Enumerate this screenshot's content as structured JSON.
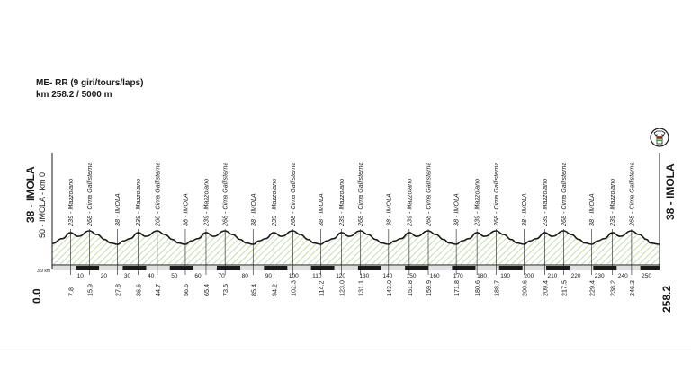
{
  "header": {
    "line1": "ME- RR  (9 giri/tours/laps)",
    "line2": "km 258.2 / 5000 m"
  },
  "left_label": "38 - IMOLA",
  "left_sub": "50 - IMOLA - km 0",
  "right_label": "38 - IMOLA",
  "start_km": "0.0",
  "end_km": "258.2",
  "scale_corner": "3.9 km",
  "colors": {
    "profile_line": "#1a1a1a",
    "hatch": "#b8d59a",
    "bar_dark": "#1a1a1a",
    "bar_light": "#e0e0e0"
  },
  "chart_data": {
    "type": "area",
    "title": "ME- RR  (9 giri/tours/laps)",
    "subtitle": "km 258.2 / 5000 m",
    "xlim": [
      0,
      258.2
    ],
    "x_ticks": [
      10,
      20,
      30,
      40,
      50,
      60,
      70,
      80,
      90,
      100,
      110,
      120,
      130,
      140,
      150,
      160,
      170,
      180,
      190,
      200,
      210,
      220,
      230,
      240,
      250
    ],
    "waypoints": [
      {
        "km": 7.8,
        "km_label": "7.8",
        "alt": 239,
        "name": "239 - Mazzolano"
      },
      {
        "km": 15.9,
        "km_label": "15.9",
        "alt": 268,
        "name": "268 - Cima Gallisterna"
      },
      {
        "km": 27.8,
        "km_label": "27.8",
        "alt": 38,
        "name": "38 - IMOLA"
      },
      {
        "km": 36.6,
        "km_label": "36.6",
        "alt": 239,
        "name": "239 - Mazzolano"
      },
      {
        "km": 44.7,
        "km_label": "44.7",
        "alt": 268,
        "name": "268 - Cima Gallisterna"
      },
      {
        "km": 56.6,
        "km_label": "56.6",
        "alt": 38,
        "name": "38 - IMOLA"
      },
      {
        "km": 65.4,
        "km_label": "65.4",
        "alt": 239,
        "name": "239 - Mazzolano"
      },
      {
        "km": 73.5,
        "km_label": "73.5",
        "alt": 268,
        "name": "268 - Cima Gallisterna"
      },
      {
        "km": 85.4,
        "km_label": "85.4",
        "alt": 38,
        "name": "38 - IMOLA"
      },
      {
        "km": 94.2,
        "km_label": "94.2",
        "alt": 239,
        "name": "239 - Mazzolano"
      },
      {
        "km": 102.3,
        "km_label": "102.3",
        "alt": 268,
        "name": "268 - Cima Gallisterna"
      },
      {
        "km": 114.2,
        "km_label": "114.2",
        "alt": 38,
        "name": "38 - IMOLA"
      },
      {
        "km": 123.0,
        "km_label": "123.0",
        "alt": 239,
        "name": "239 - Mazzolano"
      },
      {
        "km": 131.1,
        "km_label": "131.1",
        "alt": 268,
        "name": "268 - Cima Gallisterna"
      },
      {
        "km": 143.0,
        "km_label": "143.0",
        "alt": 38,
        "name": "38 - IMOLA"
      },
      {
        "km": 151.8,
        "km_label": "151.8",
        "alt": 239,
        "name": "239 - Mazzolano"
      },
      {
        "km": 159.9,
        "km_label": "159.9",
        "alt": 268,
        "name": "268 - Cima Gallisterna"
      },
      {
        "km": 171.8,
        "km_label": "171.8",
        "alt": 38,
        "name": "38 - IMOLA"
      },
      {
        "km": 180.6,
        "km_label": "180.6",
        "alt": 239,
        "name": "239 - Mazzolano"
      },
      {
        "km": 188.7,
        "km_label": "188.7",
        "alt": 268,
        "name": "268 - Cima Gallisterna"
      },
      {
        "km": 200.6,
        "km_label": "200.6",
        "alt": 38,
        "name": "38 - IMOLA"
      },
      {
        "km": 209.4,
        "km_label": "209.4",
        "alt": 239,
        "name": "239 - Mazzolano"
      },
      {
        "km": 217.5,
        "km_label": "217.5",
        "alt": 268,
        "name": "268 - Cima Gallisterna"
      },
      {
        "km": 229.4,
        "km_label": "229.4",
        "alt": 38,
        "name": "38 - IMOLA"
      },
      {
        "km": 238.2,
        "km_label": "238.2",
        "alt": 239,
        "name": "239 - Mazzolano"
      },
      {
        "km": 246.3,
        "km_label": "246.3",
        "alt": 268,
        "name": "268 - Cima Gallisterna"
      }
    ],
    "start": {
      "km": 0,
      "alt": 50
    },
    "finish": {
      "km": 258.2,
      "alt": 38
    }
  }
}
